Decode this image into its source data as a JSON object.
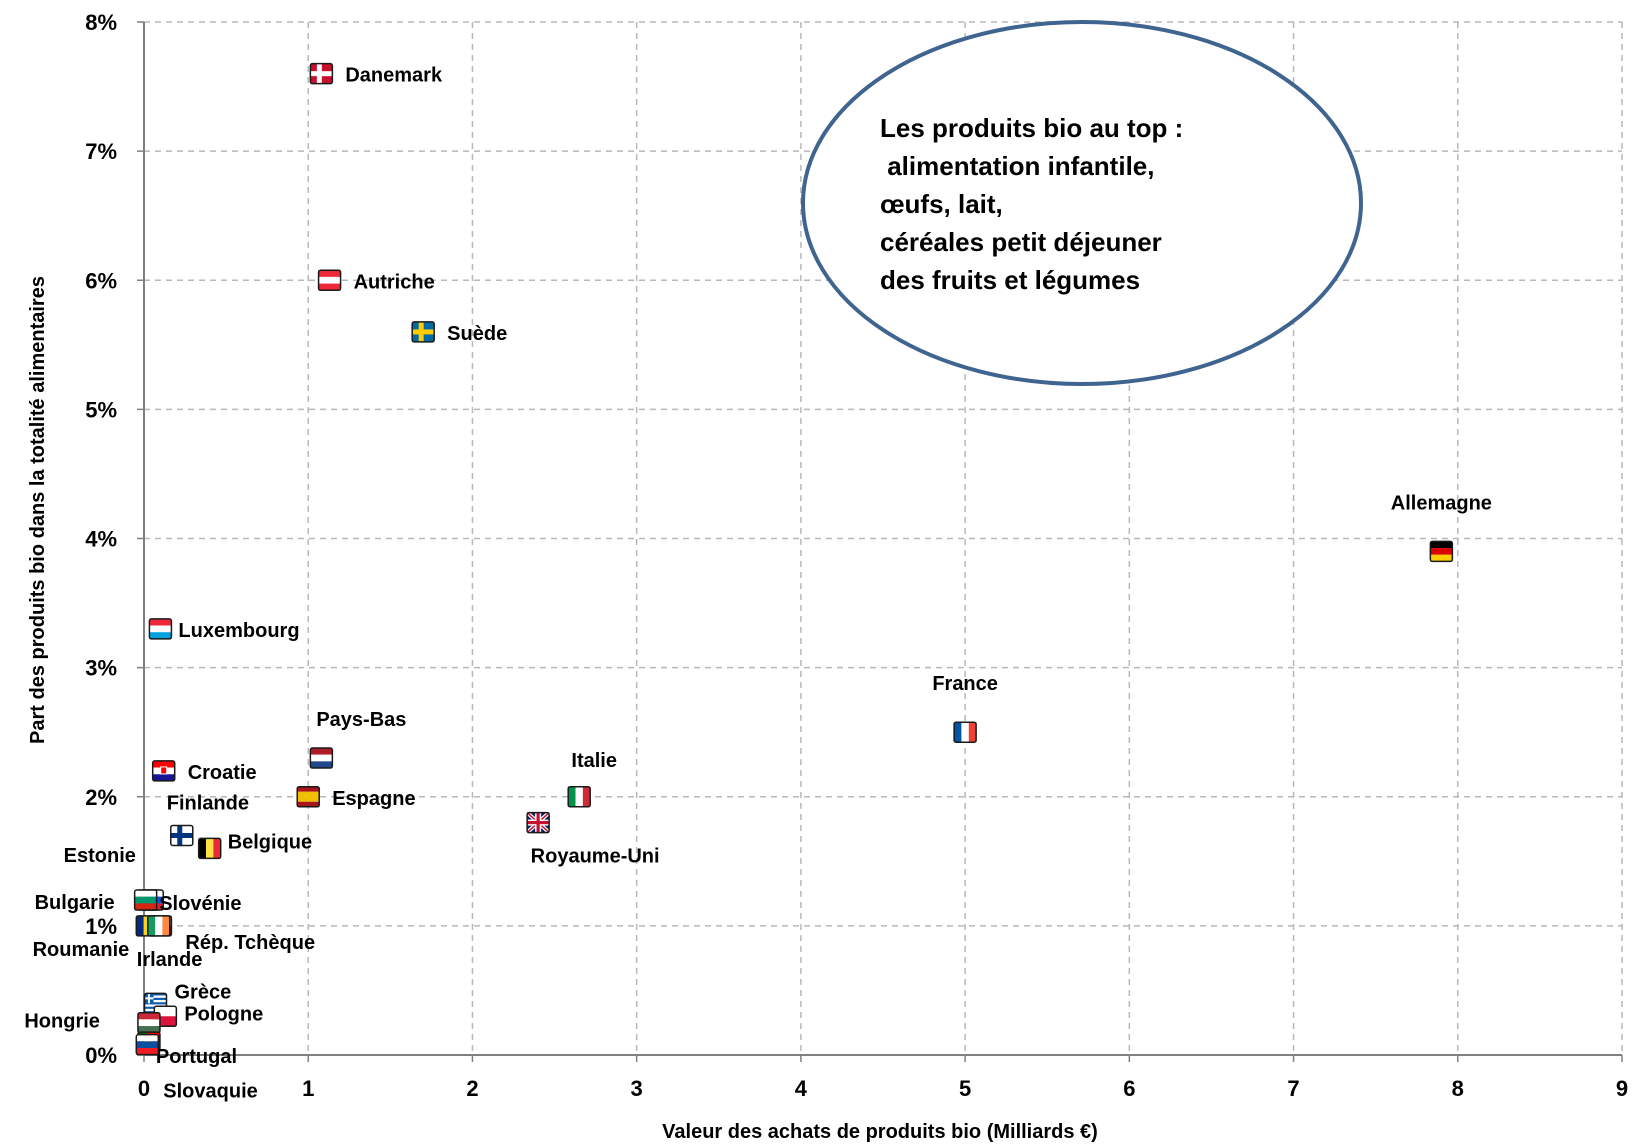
{
  "chart_data": {
    "type": "scatter",
    "title": "",
    "xlabel": "Valeur des achats de produits bio (Milliards €)",
    "ylabel": "Part des produits bio dans la totalité alimentaires",
    "xlim": [
      0,
      9
    ],
    "ylim": [
      0,
      8
    ],
    "xticks": [
      "0",
      "1",
      "2",
      "3",
      "4",
      "5",
      "6",
      "7",
      "8",
      "9"
    ],
    "yticks": [
      "0%",
      "1%",
      "2%",
      "3%",
      "4%",
      "5%",
      "6%",
      "7%",
      "8%"
    ],
    "grid": true,
    "points": [
      {
        "label": "Danemark",
        "x": 1.08,
        "y": 7.6,
        "flag": "denmark-flag-icon"
      },
      {
        "label": "Autriche",
        "x": 1.13,
        "y": 6.0,
        "flag": "austria-flag-icon"
      },
      {
        "label": "Suède",
        "x": 1.7,
        "y": 5.6,
        "flag": "sweden-flag-icon"
      },
      {
        "label": "Allemagne",
        "x": 7.9,
        "y": 3.9,
        "flag": "germany-flag-icon"
      },
      {
        "label": "Luxembourg",
        "x": 0.1,
        "y": 3.3,
        "flag": "luxembourg-flag-icon"
      },
      {
        "label": "France",
        "x": 5.0,
        "y": 2.5,
        "flag": "france-flag-icon"
      },
      {
        "label": "Pays-Bas",
        "x": 1.08,
        "y": 2.3,
        "flag": "netherlands-flag-icon"
      },
      {
        "label": "Croatie",
        "x": 0.12,
        "y": 2.2,
        "flag": "croatia-flag-icon"
      },
      {
        "label": "Espagne",
        "x": 1.0,
        "y": 2.0,
        "flag": "spain-flag-icon"
      },
      {
        "label": "Italie",
        "x": 2.65,
        "y": 2.0,
        "flag": "italy-flag-icon"
      },
      {
        "label": "Royaume-Uni",
        "x": 2.4,
        "y": 1.8,
        "flag": "uk-flag-icon"
      },
      {
        "label": "Finlande",
        "x": 0.23,
        "y": 1.7,
        "flag": "finland-flag-icon"
      },
      {
        "label": "Belgique",
        "x": 0.4,
        "y": 1.6,
        "flag": "belgium-flag-icon"
      },
      {
        "label": "Estonie",
        "x": 0.03,
        "y": 1.2,
        "flag": "estonia-flag-icon"
      },
      {
        "label": "Slovénie",
        "x": 0.05,
        "y": 1.2,
        "flag": "slovenia-flag-icon"
      },
      {
        "label": "Bulgarie",
        "x": 0.01,
        "y": 1.2,
        "flag": "bulgaria-flag-icon"
      },
      {
        "label": "Rép. Tchèque",
        "x": 0.1,
        "y": 1.0,
        "flag": "czech-flag-icon"
      },
      {
        "label": "Roumanie",
        "x": 0.02,
        "y": 1.0,
        "flag": "romania-flag-icon"
      },
      {
        "label": "Irlande",
        "x": 0.09,
        "y": 1.0,
        "flag": "ireland-flag-icon"
      },
      {
        "label": "Grèce",
        "x": 0.07,
        "y": 0.4,
        "flag": "greece-flag-icon"
      },
      {
        "label": "Pologne",
        "x": 0.13,
        "y": 0.3,
        "flag": "poland-flag-icon"
      },
      {
        "label": "Hongrie",
        "x": 0.03,
        "y": 0.25,
        "flag": "hungary-flag-icon"
      },
      {
        "label": "Portugal",
        "x": 0.03,
        "y": 0.1,
        "flag": "portugal-flag-icon"
      },
      {
        "label": "Slovaquie",
        "x": 0.02,
        "y": 0.08,
        "flag": "slovakia-flag-icon"
      }
    ],
    "annotation": {
      "lines": [
        "Les produits bio au top :",
        " alimentation infantile,",
        "œufs, lait,",
        "céréales petit déjeuner",
        "des fruits et légumes"
      ]
    },
    "colors": {
      "grid": "#b8b8b8",
      "axis": "#808080",
      "ellipse_stroke": "#3f6490"
    }
  }
}
